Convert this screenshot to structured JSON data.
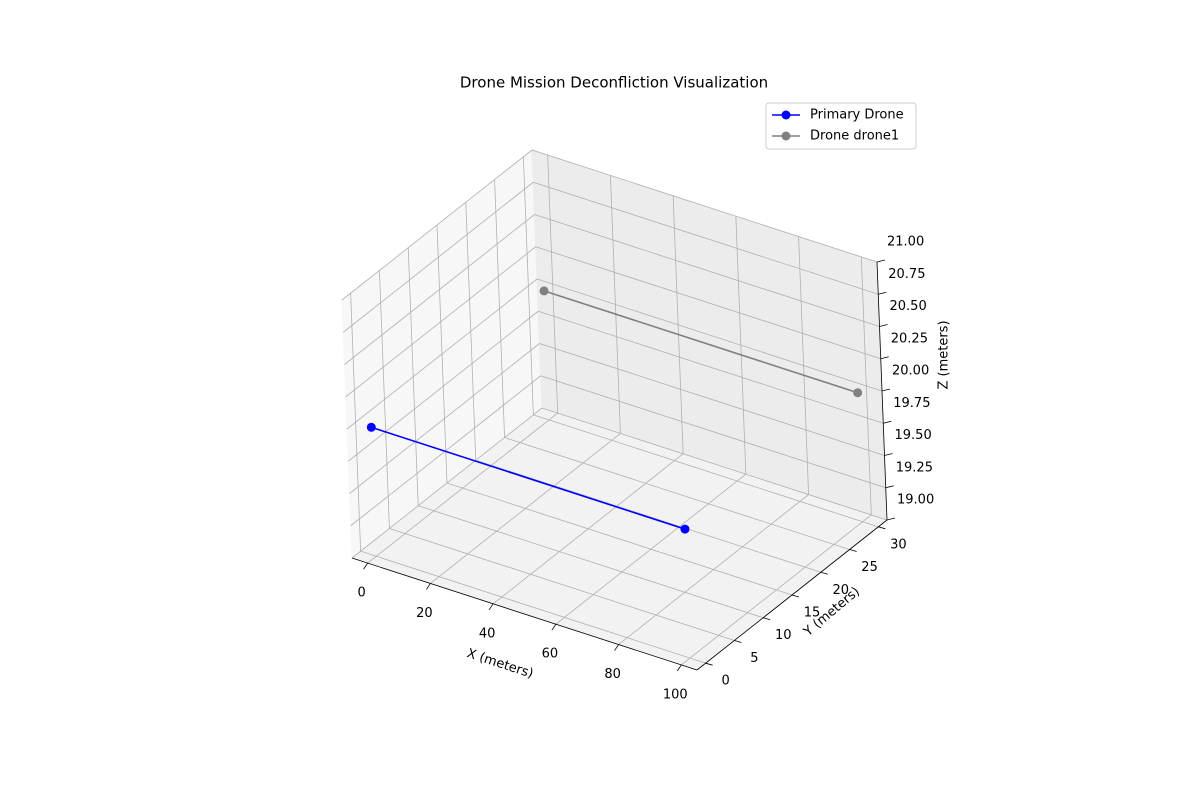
{
  "chart_data": {
    "type": "line3d",
    "title": "Drone Mission Deconfliction Visualization",
    "xlabel": "X (meters)",
    "ylabel": "Y (meters)",
    "zlabel": "Z (meters)",
    "xlim": [
      -5,
      105
    ],
    "ylim": [
      -1.5,
      31.5
    ],
    "zlim": [
      19,
      21
    ],
    "xticks": [
      0,
      20,
      40,
      60,
      80,
      100
    ],
    "yticks": [
      0,
      5,
      10,
      15,
      20,
      25,
      30
    ],
    "zticks": [
      {
        "value": 19,
        "label": "19.00"
      },
      {
        "value": 19.25,
        "label": "19.25"
      },
      {
        "value": 19.5,
        "label": "19.50"
      },
      {
        "value": 19.75,
        "label": "19.75"
      },
      {
        "value": 20,
        "label": "20.00"
      },
      {
        "value": 20.25,
        "label": "20.25"
      },
      {
        "value": 20.5,
        "label": "20.50"
      },
      {
        "value": 20.75,
        "label": "20.75"
      },
      {
        "value": 21,
        "label": "21.00"
      }
    ],
    "grid": true,
    "legend": "upper right",
    "series": [
      {
        "name": "Primary Drone",
        "color": "#0000ff",
        "x": [
          0,
          100
        ],
        "y": [
          0,
          0
        ],
        "z": [
          20,
          20
        ]
      },
      {
        "name": "Drone drone1",
        "color": "#808080",
        "x": [
          0,
          100
        ],
        "y": [
          30,
          30
        ],
        "z": [
          20,
          20
        ]
      }
    ]
  }
}
